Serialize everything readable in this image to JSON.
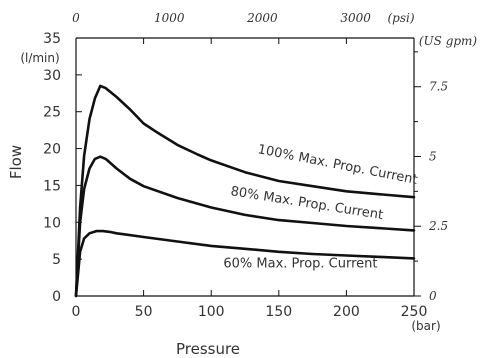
{
  "chart_data": {
    "type": "line",
    "title": "",
    "xlabel": "Pressure",
    "ylabel": "Flow",
    "x_unit": "(bar)",
    "y_unit": "(l/min)",
    "xlim": [
      0,
      250
    ],
    "ylim": [
      0,
      35
    ],
    "x_ticks": [
      "0",
      "50",
      "100",
      "150",
      "200",
      "250"
    ],
    "y_ticks": [
      "0",
      "5",
      "10",
      "15",
      "20",
      "25",
      "30",
      "35"
    ],
    "secondary_x": {
      "unit": "(psi)",
      "ticks": [
        "0",
        "1000",
        "2000",
        "3000"
      ]
    },
    "secondary_y": {
      "unit": "(US gpm)",
      "ticks": [
        "0",
        "2.5",
        "5",
        "7.5"
      ]
    },
    "grid": false,
    "series": [
      {
        "name": "100% Max. Prop. Current",
        "points": [
          [
            0,
            0
          ],
          [
            3,
            12
          ],
          [
            6,
            19
          ],
          [
            10,
            24
          ],
          [
            14,
            26.8
          ],
          [
            18,
            28.5
          ],
          [
            22,
            28.2
          ],
          [
            30,
            27
          ],
          [
            40,
            25.3
          ],
          [
            50,
            23.4
          ],
          [
            60,
            22.2
          ],
          [
            75,
            20.5
          ],
          [
            90,
            19.2
          ],
          [
            100,
            18.4
          ],
          [
            125,
            16.8
          ],
          [
            150,
            15.6
          ],
          [
            175,
            14.9
          ],
          [
            200,
            14.2
          ],
          [
            225,
            13.8
          ],
          [
            250,
            13.4
          ]
        ]
      },
      {
        "name": "80% Max. Prop. Current",
        "points": [
          [
            0,
            0
          ],
          [
            3,
            10
          ],
          [
            6,
            14.5
          ],
          [
            10,
            17.3
          ],
          [
            14,
            18.6
          ],
          [
            18,
            18.9
          ],
          [
            22,
            18.6
          ],
          [
            30,
            17.3
          ],
          [
            40,
            15.9
          ],
          [
            50,
            14.9
          ],
          [
            75,
            13.3
          ],
          [
            100,
            12
          ],
          [
            125,
            11
          ],
          [
            150,
            10.3
          ],
          [
            175,
            9.9
          ],
          [
            200,
            9.5
          ],
          [
            225,
            9.2
          ],
          [
            250,
            8.9
          ]
        ]
      },
      {
        "name": "60% Max. Prop. Current",
        "points": [
          [
            0,
            0
          ],
          [
            3,
            6
          ],
          [
            6,
            7.8
          ],
          [
            10,
            8.5
          ],
          [
            15,
            8.8
          ],
          [
            20,
            8.8
          ],
          [
            25,
            8.7
          ],
          [
            30,
            8.5
          ],
          [
            50,
            8
          ],
          [
            75,
            7.4
          ],
          [
            100,
            6.8
          ],
          [
            125,
            6.4
          ],
          [
            150,
            6
          ],
          [
            175,
            5.7
          ],
          [
            200,
            5.5
          ],
          [
            225,
            5.3
          ],
          [
            250,
            5.1
          ]
        ]
      }
    ],
    "annotations": [
      {
        "text": "100% Max. Prop. Current",
        "at": [
          134,
          19.4
        ],
        "angle_deg": 11
      },
      {
        "text": "80% Max. Prop. Current",
        "at": [
          114,
          13.7
        ],
        "angle_deg": 9
      },
      {
        "text": "60% Max. Prop. Current",
        "at": [
          109,
          3.9
        ],
        "angle_deg": 0
      }
    ]
  }
}
